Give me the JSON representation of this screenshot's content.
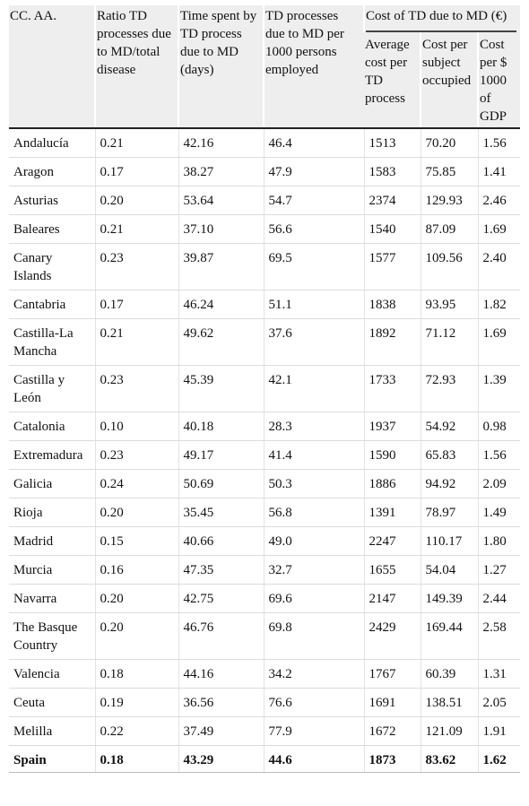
{
  "header": {
    "c0": "CC. AA.",
    "c1": "Ratio TD processes due to MD/total disease",
    "c2": "Time spent by TD process due to MD (days)",
    "c3": "TD processes due to MD per 1000 persons employed",
    "group": "Cost of TD due to MD (€)",
    "c4": "Average cost per TD process",
    "c5": "Cost per subject occupied",
    "c6": "Cost per $ 1000 of GDP"
  },
  "rows": [
    [
      "Andalucía",
      "0.21",
      "42.16",
      "46.4",
      "1513",
      "70.20",
      "1.56"
    ],
    [
      "Aragon",
      "0.17",
      "38.27",
      "47.9",
      "1583",
      "75.85",
      "1.41"
    ],
    [
      "Asturias",
      "0.20",
      "53.64",
      "54.7",
      "2374",
      "129.93",
      "2.46"
    ],
    [
      "Baleares",
      "0.21",
      "37.10",
      "56.6",
      "1540",
      "87.09",
      "1.69"
    ],
    [
      "Canary Islands",
      "0.23",
      "39.87",
      "69.5",
      "1577",
      "109.56",
      "2.40"
    ],
    [
      "Cantabria",
      "0.17",
      "46.24",
      "51.1",
      "1838",
      "93.95",
      "1.82"
    ],
    [
      "Castilla-La Mancha",
      "0.21",
      "49.62",
      "37.6",
      "1892",
      "71.12",
      "1.69"
    ],
    [
      "Castilla y León",
      "0.23",
      "45.39",
      "42.1",
      "1733",
      "72.93",
      "1.39"
    ],
    [
      "Catalonia",
      "0.10",
      "40.18",
      "28.3",
      "1937",
      "54.92",
      "0.98"
    ],
    [
      "Extremadura",
      "0.23",
      "49.17",
      "41.4",
      "1590",
      "65.83",
      "1.56"
    ],
    [
      "Galicia",
      "0.24",
      "50.69",
      "50.3",
      "1886",
      "94.92",
      "2.09"
    ],
    [
      "Rioja",
      "0.20",
      "35.45",
      "56.8",
      "1391",
      "78.97",
      "1.49"
    ],
    [
      "Madrid",
      "0.15",
      "40.66",
      "49.0",
      "2247",
      "110.17",
      "1.80"
    ],
    [
      "Murcia",
      "0.16",
      "47.35",
      "32.7",
      "1655",
      "54.04",
      "1.27"
    ],
    [
      "Navarra",
      "0.20",
      "42.75",
      "69.6",
      "2147",
      "149.39",
      "2.44"
    ],
    [
      "The Basque Country",
      "0.20",
      "46.76",
      "69.8",
      "2429",
      "169.44",
      "2.58"
    ],
    [
      "Valencia",
      "0.18",
      "44.16",
      "34.2",
      "1767",
      "60.39",
      "1.31"
    ],
    [
      "Ceuta",
      "0.19",
      "36.56",
      "76.6",
      "1691",
      "138.51",
      "2.05"
    ],
    [
      "Melilla",
      "0.22",
      "37.49",
      "77.9",
      "1672",
      "121.09",
      "1.91"
    ]
  ],
  "total": [
    "Spain",
    "0.18",
    "43.29",
    "44.6",
    "1873",
    "83.62",
    "1.62"
  ]
}
